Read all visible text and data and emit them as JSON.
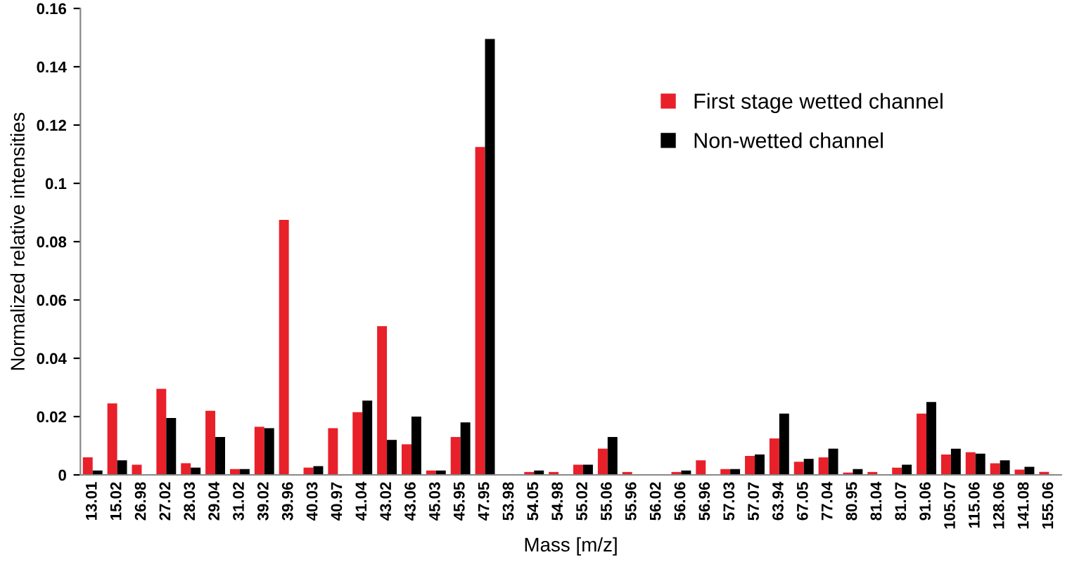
{
  "chart_data": {
    "type": "bar",
    "xlabel": "Mass [m/z]",
    "ylabel": "Normalized relative intensities",
    "categories": [
      "13.01",
      "15.02",
      "26.98",
      "27.02",
      "28.03",
      "29.04",
      "31.02",
      "39.02",
      "39.96",
      "40.03",
      "40.97",
      "41.04",
      "43.02",
      "43.06",
      "45.03",
      "45.95",
      "47.95",
      "53.98",
      "54.05",
      "54.98",
      "55.02",
      "55.06",
      "55.96",
      "56.02",
      "56.06",
      "56.96",
      "57.03",
      "57.07",
      "63.94",
      "67.05",
      "77.04",
      "80.95",
      "81.04",
      "81.07",
      "91.06",
      "105.07",
      "115.06",
      "128.06",
      "141.08",
      "155.06"
    ],
    "series": [
      {
        "name": "First stage wetted channel",
        "color": "#e8202a",
        "values": [
          0.006,
          0.0245,
          0.0035,
          0.0295,
          0.004,
          0.022,
          0.002,
          0.0165,
          0.0875,
          0.0025,
          0.016,
          0.0215,
          0.051,
          0.0105,
          0.0015,
          0.013,
          0.1125,
          null,
          0.001,
          0.001,
          0.0035,
          0.009,
          0.001,
          null,
          0.001,
          0.005,
          0.002,
          0.0065,
          0.0125,
          0.0045,
          0.006,
          0.0008,
          0.001,
          0.0025,
          0.021,
          0.007,
          0.0078,
          0.004,
          0.0018,
          0.001
        ]
      },
      {
        "name": "Non-wetted channel",
        "color": "#000000",
        "values": [
          0.0015,
          0.005,
          0,
          0.0195,
          0.0025,
          0.013,
          0.002,
          0.016,
          0,
          0.003,
          0,
          0.0255,
          0.012,
          0.02,
          0.0015,
          0.018,
          0.1495,
          0,
          0.0015,
          0,
          0.0035,
          0.013,
          0,
          0,
          0.0015,
          0,
          0.002,
          0.007,
          0.021,
          0.0055,
          0.009,
          0.002,
          null,
          0.0035,
          0.025,
          0.009,
          0.0073,
          0.005,
          0.0028,
          0
        ]
      }
    ],
    "ylim": [
      0,
      0.16
    ],
    "yticks": [
      0,
      0.02,
      0.04,
      0.06,
      0.08,
      0.1,
      0.12,
      0.14,
      0.16
    ],
    "grid": false,
    "legend": "top right"
  }
}
